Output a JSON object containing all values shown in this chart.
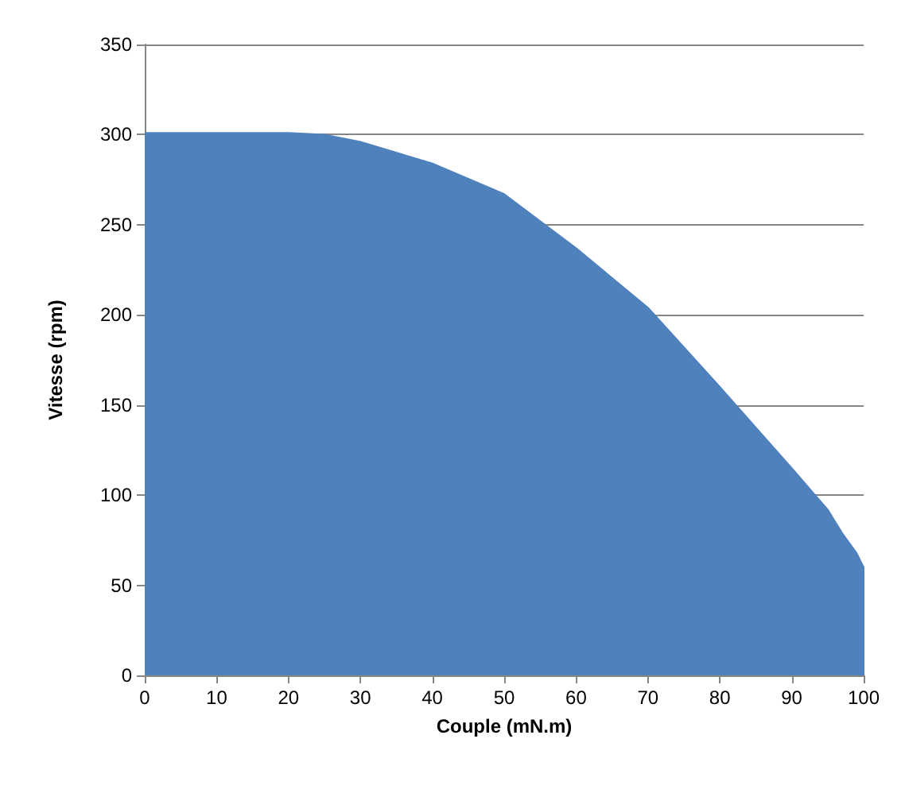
{
  "chart_data": {
    "type": "area",
    "xlabel": "Couple (mN.m)",
    "ylabel": "Vitesse (rpm)",
    "x": [
      0,
      10,
      20,
      25,
      30,
      40,
      50,
      60,
      70,
      80,
      90,
      95,
      97,
      99,
      100,
      100
    ],
    "series": [
      {
        "color": "#4f81bd",
        "values": [
          301,
          301,
          301,
          300,
          296,
          284,
          267,
          237,
          204,
          160,
          115,
          92,
          79,
          68,
          60,
          0
        ]
      }
    ],
    "xlim": [
      0,
      100
    ],
    "xticks": [
      0,
      10,
      20,
      30,
      40,
      50,
      60,
      70,
      80,
      90,
      100
    ],
    "ylim": [
      0,
      350
    ],
    "yticks": [
      0,
      50,
      100,
      150,
      200,
      250,
      300,
      350
    ],
    "grid": "y",
    "marker": "none"
  }
}
